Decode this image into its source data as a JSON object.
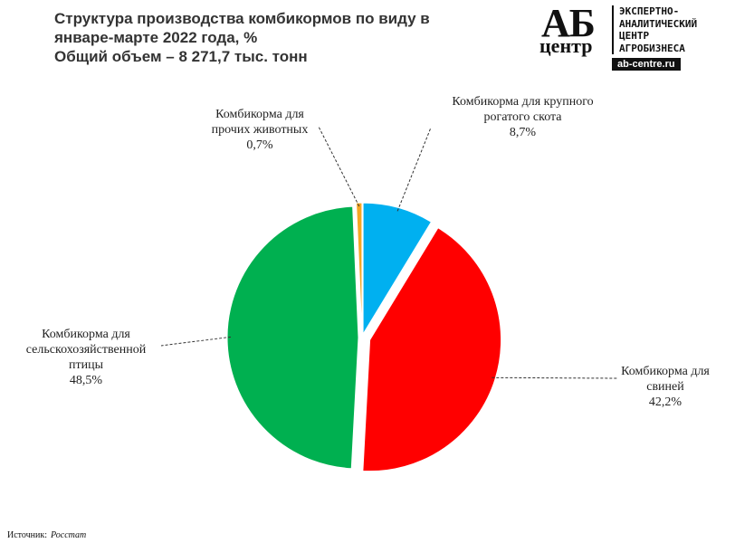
{
  "chart_data": {
    "type": "pie",
    "title": "Структура производства комбикормов по виду в январе-марте 2022 года, %",
    "subtitle": "Общий объем – 8 271,7 тыс. тонн",
    "categories": [
      "Комбикорма для крупного рогатого скота",
      "Комбикорма для свиней",
      "Комбикорма для сельскохозяйственной птицы",
      "Комбикорма для прочих животных"
    ],
    "values": [
      8.7,
      42.2,
      48.5,
      0.7
    ],
    "value_labels": [
      "8,7%",
      "42,2%",
      "48,5%",
      "0,7%"
    ],
    "colors": [
      "#00b0f0",
      "#ff0000",
      "#00b050",
      "#f5a623"
    ]
  },
  "logo": {
    "mark": "АБ",
    "word": "центр",
    "tagline": [
      "ЭКСПЕРТНО-",
      "АНАЛИТИЧЕСКИЙ",
      "ЦЕНТР",
      "АГРОБИЗНЕСА"
    ],
    "site": "ab-centre.ru"
  },
  "source": {
    "label": "Источник:",
    "name": "Росстат"
  }
}
